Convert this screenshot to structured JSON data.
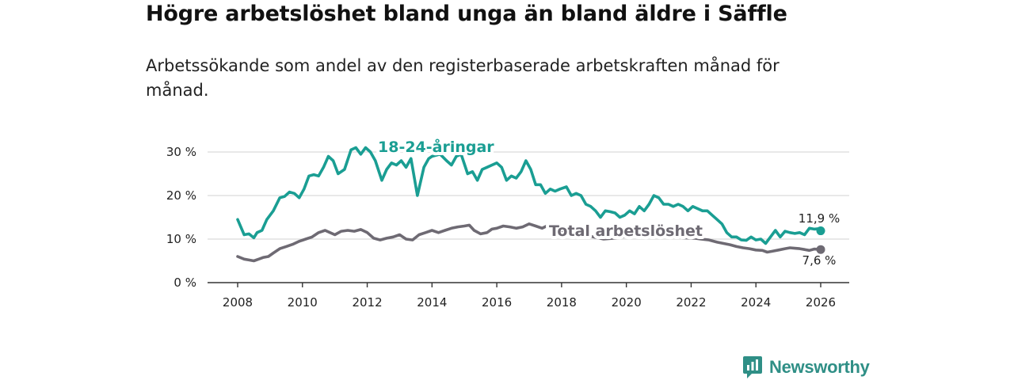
{
  "title": "Högre arbetslöshet bland unga än bland äldre i Säffle",
  "subtitle": "Arbetssökande som andel av den registerbaserade arbetskraften månad för månad.",
  "brand": {
    "name": "Newsworthy",
    "color": "#2f8f86",
    "icon": "bar-chart-icon"
  },
  "chart_data": {
    "type": "line",
    "title": "Högre arbetslöshet bland unga än bland äldre i Säffle",
    "xlabel": "",
    "ylabel": "",
    "xlim": [
      2007.9,
      2026.8
    ],
    "ylim": [
      0,
      30
    ],
    "grid": true,
    "x_ticks": [
      2008,
      2010,
      2012,
      2014,
      2016,
      2018,
      2020,
      2022,
      2024,
      2026
    ],
    "x_tick_labels": [
      "2008",
      "2010",
      "2012",
      "2014",
      "2016",
      "2018",
      "2020",
      "2022",
      "2024",
      "2026"
    ],
    "y_ticks": [
      0,
      10,
      20,
      30
    ],
    "y_tick_labels": [
      "0 %",
      "10 %",
      "20 %",
      "30 %"
    ],
    "series": [
      {
        "name": "18-24-åringar",
        "label": "18-24-åringar",
        "color": "#1a9e93",
        "end_label": "11,9 %",
        "points": [
          [
            2008.0,
            14.5
          ],
          [
            2008.2,
            11.0
          ],
          [
            2008.35,
            11.2
          ],
          [
            2008.5,
            10.3
          ],
          [
            2008.6,
            11.5
          ],
          [
            2008.75,
            12.0
          ],
          [
            2008.9,
            14.5
          ],
          [
            2009.1,
            16.5
          ],
          [
            2009.3,
            19.5
          ],
          [
            2009.45,
            19.8
          ],
          [
            2009.6,
            20.8
          ],
          [
            2009.75,
            20.5
          ],
          [
            2009.9,
            19.5
          ],
          [
            2010.05,
            21.5
          ],
          [
            2010.2,
            24.5
          ],
          [
            2010.35,
            24.8
          ],
          [
            2010.5,
            24.5
          ],
          [
            2010.65,
            26.5
          ],
          [
            2010.8,
            29.0
          ],
          [
            2010.95,
            28.0
          ],
          [
            2011.1,
            25.0
          ],
          [
            2011.3,
            26.0
          ],
          [
            2011.5,
            30.5
          ],
          [
            2011.65,
            31.0
          ],
          [
            2011.8,
            29.5
          ],
          [
            2011.95,
            31.0
          ],
          [
            2012.1,
            30.0
          ],
          [
            2012.25,
            28.0
          ],
          [
            2012.45,
            23.5
          ],
          [
            2012.6,
            26.0
          ],
          [
            2012.75,
            27.5
          ],
          [
            2012.9,
            27.0
          ],
          [
            2013.05,
            28.0
          ],
          [
            2013.2,
            26.5
          ],
          [
            2013.35,
            28.5
          ],
          [
            2013.55,
            20.0
          ],
          [
            2013.75,
            26.5
          ],
          [
            2013.9,
            28.5
          ],
          [
            2014.0,
            29.0
          ],
          [
            2014.25,
            29.5
          ],
          [
            2014.45,
            28.0
          ],
          [
            2014.6,
            27.0
          ],
          [
            2014.75,
            29.0
          ],
          [
            2014.9,
            29.5
          ],
          [
            2015.1,
            25.0
          ],
          [
            2015.25,
            25.5
          ],
          [
            2015.4,
            23.5
          ],
          [
            2015.55,
            26.0
          ],
          [
            2015.7,
            26.5
          ],
          [
            2015.85,
            27.0
          ],
          [
            2016.0,
            27.5
          ],
          [
            2016.15,
            26.5
          ],
          [
            2016.3,
            23.5
          ],
          [
            2016.45,
            24.5
          ],
          [
            2016.6,
            24.0
          ],
          [
            2016.75,
            25.5
          ],
          [
            2016.9,
            28.0
          ],
          [
            2017.05,
            26.0
          ],
          [
            2017.2,
            22.5
          ],
          [
            2017.35,
            22.5
          ],
          [
            2017.5,
            20.5
          ],
          [
            2017.65,
            21.5
          ],
          [
            2017.8,
            21.0
          ],
          [
            2017.95,
            21.5
          ],
          [
            2018.15,
            22.0
          ],
          [
            2018.3,
            20.0
          ],
          [
            2018.45,
            20.5
          ],
          [
            2018.6,
            20.0
          ],
          [
            2018.75,
            18.0
          ],
          [
            2018.9,
            17.5
          ],
          [
            2019.05,
            16.5
          ],
          [
            2019.2,
            15.0
          ],
          [
            2019.35,
            16.5
          ],
          [
            2019.5,
            16.3
          ],
          [
            2019.65,
            16.0
          ],
          [
            2019.8,
            15.0
          ],
          [
            2019.95,
            15.5
          ],
          [
            2020.1,
            16.5
          ],
          [
            2020.25,
            15.8
          ],
          [
            2020.4,
            17.5
          ],
          [
            2020.55,
            16.5
          ],
          [
            2020.7,
            18.0
          ],
          [
            2020.85,
            20.0
          ],
          [
            2021.0,
            19.5
          ],
          [
            2021.15,
            18.0
          ],
          [
            2021.3,
            18.0
          ],
          [
            2021.45,
            17.5
          ],
          [
            2021.6,
            18.0
          ],
          [
            2021.75,
            17.5
          ],
          [
            2021.9,
            16.5
          ],
          [
            2022.05,
            17.5
          ],
          [
            2022.2,
            17.0
          ],
          [
            2022.35,
            16.5
          ],
          [
            2022.5,
            16.5
          ],
          [
            2022.65,
            15.5
          ],
          [
            2022.8,
            14.5
          ],
          [
            2022.95,
            13.5
          ],
          [
            2023.1,
            11.5
          ],
          [
            2023.25,
            10.5
          ],
          [
            2023.4,
            10.5
          ],
          [
            2023.55,
            9.8
          ],
          [
            2023.7,
            9.7
          ],
          [
            2023.85,
            10.5
          ],
          [
            2024.0,
            9.8
          ],
          [
            2024.15,
            10.0
          ],
          [
            2024.3,
            9.0
          ],
          [
            2024.45,
            10.5
          ],
          [
            2024.6,
            12.0
          ],
          [
            2024.75,
            10.5
          ],
          [
            2024.9,
            11.8
          ],
          [
            2025.05,
            11.5
          ],
          [
            2025.2,
            11.3
          ],
          [
            2025.35,
            11.5
          ],
          [
            2025.5,
            11.0
          ],
          [
            2025.65,
            12.5
          ],
          [
            2025.8,
            12.3
          ],
          [
            2025.95,
            12.4
          ],
          [
            2026.0,
            11.9
          ]
        ]
      },
      {
        "name": "Total arbetslöshet",
        "label": "Total arbetslöshet",
        "color": "#6e6a73",
        "end_label": "7,6 %",
        "points": [
          [
            2008.0,
            6.0
          ],
          [
            2008.2,
            5.4
          ],
          [
            2008.35,
            5.2
          ],
          [
            2008.5,
            5.0
          ],
          [
            2008.65,
            5.4
          ],
          [
            2008.8,
            5.8
          ],
          [
            2008.95,
            6.0
          ],
          [
            2009.1,
            6.8
          ],
          [
            2009.3,
            7.8
          ],
          [
            2009.5,
            8.3
          ],
          [
            2009.7,
            8.8
          ],
          [
            2009.9,
            9.5
          ],
          [
            2010.1,
            10.0
          ],
          [
            2010.3,
            10.5
          ],
          [
            2010.5,
            11.5
          ],
          [
            2010.7,
            12.0
          ],
          [
            2010.85,
            11.5
          ],
          [
            2011.0,
            11.0
          ],
          [
            2011.2,
            11.8
          ],
          [
            2011.4,
            12.0
          ],
          [
            2011.6,
            11.8
          ],
          [
            2011.8,
            12.2
          ],
          [
            2012.0,
            11.5
          ],
          [
            2012.2,
            10.2
          ],
          [
            2012.4,
            9.8
          ],
          [
            2012.6,
            10.2
          ],
          [
            2012.8,
            10.5
          ],
          [
            2013.0,
            11.0
          ],
          [
            2013.2,
            10.0
          ],
          [
            2013.4,
            9.8
          ],
          [
            2013.6,
            11.0
          ],
          [
            2013.8,
            11.5
          ],
          [
            2014.0,
            12.0
          ],
          [
            2014.2,
            11.5
          ],
          [
            2014.4,
            12.0
          ],
          [
            2014.6,
            12.5
          ],
          [
            2014.8,
            12.8
          ],
          [
            2015.0,
            13.0
          ],
          [
            2015.15,
            13.2
          ],
          [
            2015.3,
            12.0
          ],
          [
            2015.5,
            11.2
          ],
          [
            2015.7,
            11.5
          ],
          [
            2015.85,
            12.3
          ],
          [
            2016.0,
            12.5
          ],
          [
            2016.2,
            13.0
          ],
          [
            2016.4,
            12.8
          ],
          [
            2016.6,
            12.5
          ],
          [
            2016.8,
            12.8
          ],
          [
            2017.0,
            13.5
          ],
          [
            2017.2,
            13.0
          ],
          [
            2017.4,
            12.5
          ],
          [
            2017.6,
            13.2
          ],
          [
            2017.8,
            13.0
          ],
          [
            2018.0,
            12.0
          ],
          [
            2018.2,
            12.5
          ],
          [
            2018.4,
            12.0
          ],
          [
            2018.6,
            11.2
          ],
          [
            2018.8,
            10.8
          ],
          [
            2019.0,
            10.5
          ],
          [
            2019.3,
            10.0
          ],
          [
            2019.6,
            10.2
          ],
          [
            2020.0,
            10.6
          ],
          [
            2020.3,
            10.8
          ],
          [
            2020.6,
            11.0
          ],
          [
            2021.0,
            10.8
          ],
          [
            2021.4,
            10.5
          ],
          [
            2021.8,
            10.3
          ],
          [
            2022.1,
            10.2
          ],
          [
            2022.3,
            10.0
          ],
          [
            2022.55,
            9.8
          ],
          [
            2022.8,
            9.3
          ],
          [
            2023.0,
            9.0
          ],
          [
            2023.2,
            8.7
          ],
          [
            2023.4,
            8.3
          ],
          [
            2023.6,
            8.0
          ],
          [
            2023.8,
            7.8
          ],
          [
            2024.0,
            7.5
          ],
          [
            2024.2,
            7.4
          ],
          [
            2024.35,
            7.0
          ],
          [
            2024.5,
            7.2
          ],
          [
            2024.7,
            7.5
          ],
          [
            2024.9,
            7.8
          ],
          [
            2025.05,
            8.0
          ],
          [
            2025.2,
            7.9
          ],
          [
            2025.35,
            7.8
          ],
          [
            2025.5,
            7.6
          ],
          [
            2025.65,
            7.4
          ],
          [
            2025.8,
            7.7
          ],
          [
            2026.0,
            7.6
          ]
        ]
      }
    ]
  }
}
